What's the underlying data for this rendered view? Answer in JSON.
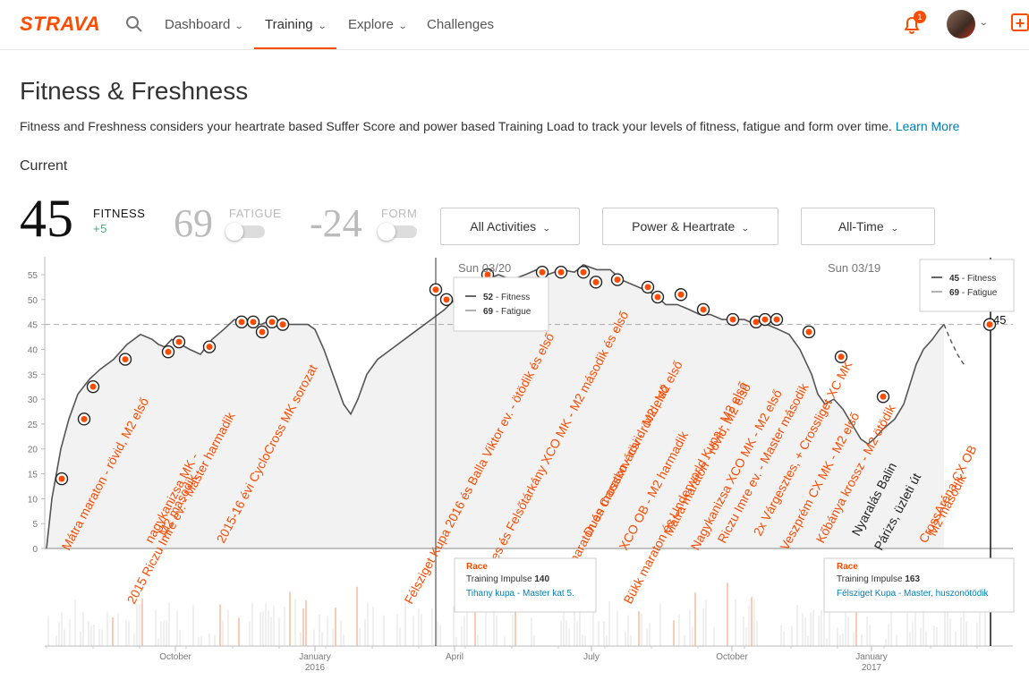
{
  "brand": "STRAVA",
  "nav": {
    "dashboard": "Dashboard",
    "training": "Training",
    "explore": "Explore",
    "challenges": "Challenges",
    "notification_count": "1"
  },
  "page": {
    "title": "Fitness & Freshness",
    "description": "Fitness and Freshness considers your heartrate based Suffer Score and power based Training Load to track your levels of fitness, fatigue and form over time.",
    "learn_more": "Learn More",
    "current_label": "Current"
  },
  "metrics": {
    "fitness": {
      "value": "45",
      "label": "FITNESS",
      "delta": "+5"
    },
    "fatigue": {
      "value": "69",
      "label": "FATIGUE"
    },
    "form": {
      "value": "-24",
      "label": "FORM"
    }
  },
  "filters": {
    "activities": "All Activities",
    "type": "Power & Heartrate",
    "range": "All-Time"
  },
  "colors": {
    "accent": "#fc4c02",
    "link": "#007fb6",
    "line": "#555555",
    "area": "#f2f2f2"
  },
  "chart_data": {
    "type": "line",
    "ylim": [
      0,
      55
    ],
    "yticks": [
      "0",
      "5",
      "10",
      "15",
      "20",
      "25",
      "30",
      "35",
      "40",
      "45",
      "50",
      "55"
    ],
    "xticks": [
      {
        "label": "October",
        "sub": ""
      },
      {
        "label": "January",
        "sub": "2016"
      },
      {
        "label": "April",
        "sub": ""
      },
      {
        "label": "July",
        "sub": ""
      },
      {
        "label": "October",
        "sub": ""
      },
      {
        "label": "January",
        "sub": "2017"
      }
    ],
    "current_value": "45",
    "series_fitness": [
      [
        0,
        0
      ],
      [
        3,
        5
      ],
      [
        6,
        10
      ],
      [
        10,
        14
      ],
      [
        16,
        20
      ],
      [
        25,
        26
      ],
      [
        35,
        31
      ],
      [
        48,
        34
      ],
      [
        60,
        36
      ],
      [
        75,
        38
      ],
      [
        90,
        41
      ],
      [
        105,
        43
      ],
      [
        118,
        42
      ],
      [
        125,
        41
      ],
      [
        132,
        40.5
      ],
      [
        140,
        42
      ],
      [
        150,
        41
      ],
      [
        160,
        40
      ],
      [
        172,
        39
      ],
      [
        185,
        42
      ],
      [
        198,
        44
      ],
      [
        210,
        46
      ],
      [
        225,
        45.5
      ],
      [
        240,
        45
      ],
      [
        252,
        46
      ],
      [
        262,
        45.5
      ],
      [
        272,
        45
      ],
      [
        282,
        45
      ],
      [
        292,
        45
      ],
      [
        300,
        44
      ],
      [
        310,
        40
      ],
      [
        320,
        35
      ],
      [
        332,
        29
      ],
      [
        340,
        27
      ],
      [
        348,
        30
      ],
      [
        358,
        35
      ],
      [
        370,
        38
      ],
      [
        385,
        40
      ],
      [
        400,
        42
      ],
      [
        415,
        44
      ],
      [
        430,
        46
      ],
      [
        445,
        48
      ],
      [
        456,
        50
      ],
      [
        462,
        52
      ],
      [
        470,
        52
      ],
      [
        480,
        53
      ],
      [
        492,
        54
      ],
      [
        505,
        55
      ],
      [
        520,
        54
      ],
      [
        535,
        55
      ],
      [
        548,
        56
      ],
      [
        560,
        55
      ],
      [
        575,
        56
      ],
      [
        590,
        55.5
      ],
      [
        600,
        57
      ],
      [
        615,
        56
      ],
      [
        630,
        56
      ],
      [
        642,
        54
      ],
      [
        655,
        53
      ],
      [
        668,
        52
      ],
      [
        680,
        51
      ],
      [
        692,
        49
      ],
      [
        705,
        49
      ],
      [
        718,
        48
      ],
      [
        730,
        47
      ],
      [
        742,
        47
      ],
      [
        755,
        46
      ],
      [
        768,
        46
      ],
      [
        780,
        46
      ],
      [
        792,
        45
      ],
      [
        805,
        45
      ],
      [
        818,
        44
      ],
      [
        830,
        43
      ],
      [
        842,
        40
      ],
      [
        855,
        35
      ],
      [
        862,
        31
      ],
      [
        870,
        29
      ],
      [
        880,
        30
      ],
      [
        890,
        28
      ],
      [
        900,
        25
      ],
      [
        910,
        22
      ],
      [
        918,
        21
      ],
      [
        925,
        22
      ],
      [
        935,
        24
      ],
      [
        948,
        26
      ],
      [
        958,
        29
      ],
      [
        965,
        33
      ],
      [
        972,
        37
      ],
      [
        980,
        40
      ],
      [
        990,
        42
      ],
      [
        998,
        44
      ],
      [
        1003,
        45
      ]
    ],
    "forecast": [
      [
        1003,
        45
      ],
      [
        1010,
        42
      ],
      [
        1018,
        39
      ],
      [
        1025,
        37
      ]
    ],
    "markers": [
      [
        17,
        14
      ],
      [
        42,
        26
      ],
      [
        52,
        32.5
      ],
      [
        88,
        38
      ],
      [
        136,
        39.5
      ],
      [
        148,
        41.5
      ],
      [
        182,
        40.5
      ],
      [
        218,
        45.5
      ],
      [
        231,
        45.5
      ],
      [
        241,
        43.5
      ],
      [
        252,
        45.5
      ],
      [
        264,
        45
      ],
      [
        435,
        52
      ],
      [
        447,
        50
      ],
      [
        493,
        55
      ],
      [
        554,
        55.5
      ],
      [
        575,
        55.5
      ],
      [
        600,
        55.5
      ],
      [
        614,
        53.5
      ],
      [
        638,
        54
      ],
      [
        672,
        52.5
      ],
      [
        683,
        50.5
      ],
      [
        709,
        51
      ],
      [
        734,
        48
      ],
      [
        767,
        46
      ],
      [
        793,
        45.5
      ],
      [
        803,
        46
      ],
      [
        816,
        46
      ],
      [
        852,
        43.5
      ],
      [
        888,
        38.5
      ],
      [
        935,
        30.5
      ],
      [
        1054,
        45
      ]
    ],
    "annotations": [
      {
        "text": "Mátra maraton - rövid, M2 első",
        "x": 17,
        "color": "#fc4c02"
      },
      {
        "text": "nagykanizsa MK -",
        "x": 110,
        "color": "#fc4c02"
      },
      {
        "text": "M2 második",
        "x": 125,
        "color": "#fc4c02"
      },
      {
        "text": "2015 Riczu Imre ev. - Master harmadik",
        "x": 90,
        "color": "#fc4c02"
      },
      {
        "text": "2015-16 évi CycloCross MK sorozat",
        "x": 190,
        "color": "#fc4c02"
      },
      {
        "text": "Félsziget Kupa 2016 és Balla Viktor ev. - ötödik és első",
        "x": 400,
        "color": "#fc4c02"
      },
      {
        "text": "Várgesztes és Felsőtárkány XCO MK - M2 második és első",
        "x": 470,
        "color": "#fc4c02"
      },
      {
        "text": "Szilvás maraton és Crosskovácsi - rövid, M2 első",
        "x": 560,
        "color": "#fc4c02"
      },
      {
        "text": "Duan maraton - rövid, M2 első",
        "x": 600,
        "color": "#fc4c02"
      },
      {
        "text": "XCO OB - M2 harmadik",
        "x": 640,
        "color": "#fc4c02"
      },
      {
        "text": "Bükk maraton és Underworld Kupa - M2 első",
        "x": 645,
        "color": "#fc4c02"
      },
      {
        "text": "Mátra maraton - rövid, M2 első",
        "x": 690,
        "color": "#fc4c02"
      },
      {
        "text": "Nagykanizsa XCO MK - M2 első",
        "x": 720,
        "color": "#fc4c02"
      },
      {
        "text": "Riczu Imre ev. - Master második",
        "x": 750,
        "color": "#fc4c02"
      },
      {
        "text": "2x Várgesztes, + Crossliget XC MK",
        "x": 790,
        "color": "#fc4c02"
      },
      {
        "text": "Veszprém CX MK - M2 első",
        "x": 820,
        "color": "#fc4c02"
      },
      {
        "text": "Kőbánya krossz - M2 ötödik",
        "x": 860,
        "color": "#fc4c02"
      },
      {
        "text": "Nyaralás Balin",
        "x": 900,
        "color": "#222222"
      },
      {
        "text": "Párizs, üzleti út",
        "x": 925,
        "color": "#222222"
      },
      {
        "text": "CrossAréna CX OB",
        "x": 975,
        "color": "#fc4c02"
      },
      {
        "text": "M2 második",
        "x": 985,
        "color": "#fc4c02"
      }
    ],
    "hover_left": {
      "date": "Sun 03/20",
      "fitness": "52",
      "fatigue": "69",
      "fitness_label": "Fitness",
      "fatigue_label": "Fatigue"
    },
    "hover_right": {
      "date": "Sun 03/19",
      "fitness": "45",
      "fatigue": "69",
      "fitness_label": "Fitness",
      "fatigue_label": "Fatigue"
    },
    "race_left": {
      "type": "Race",
      "impulse_label": "Training Impulse",
      "impulse": "140",
      "name": "Tihany kupa - Master kat 5."
    },
    "race_right": {
      "type": "Race",
      "impulse_label": "Training Impulse",
      "impulse": "163",
      "name": "Félsziget Kupa - Master, huszonötödik"
    }
  }
}
